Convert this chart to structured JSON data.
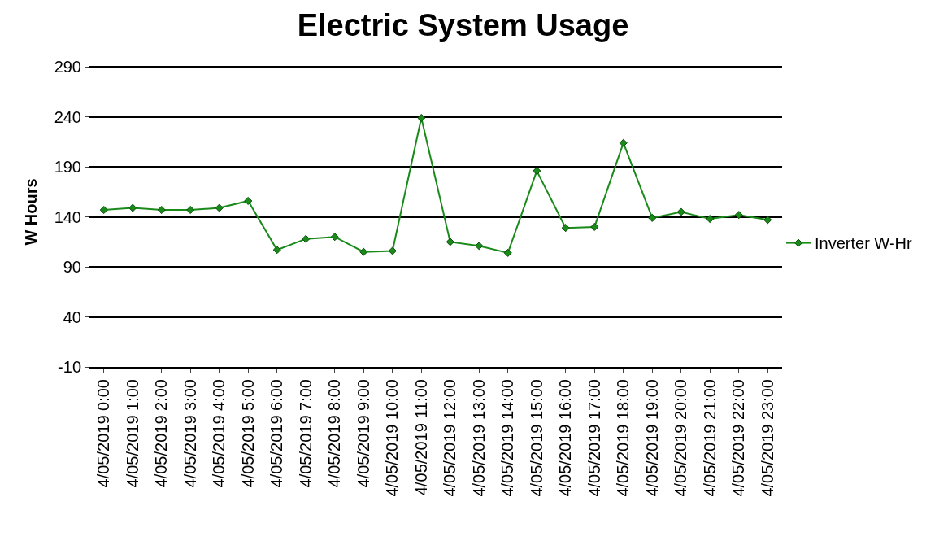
{
  "chart_data": {
    "type": "line",
    "title": "Electric System Usage",
    "ylabel": "W Hours",
    "categories": [
      "4/05/2019 0:00",
      "4/05/2019 1:00",
      "4/05/2019 2:00",
      "4/05/2019 3:00",
      "4/05/2019 4:00",
      "4/05/2019 5:00",
      "4/05/2019 6:00",
      "4/05/2019 7:00",
      "4/05/2019 8:00",
      "4/05/2019 9:00",
      "4/05/2019 10:00",
      "4/05/2019 11:00",
      "4/05/2019 12:00",
      "4/05/2019 13:00",
      "4/05/2019 14:00",
      "4/05/2019 15:00",
      "4/05/2019 16:00",
      "4/05/2019 17:00",
      "4/05/2019 18:00",
      "4/05/2019 19:00",
      "4/05/2019 20:00",
      "4/05/2019 21:00",
      "4/05/2019 22:00",
      "4/05/2019 23:00"
    ],
    "series": [
      {
        "name": "Inverter W-Hr",
        "color": "#1a8a1a",
        "values": [
          147,
          149,
          147,
          147,
          149,
          156,
          107,
          118,
          120,
          105,
          106,
          239,
          115,
          111,
          104,
          186,
          129,
          130,
          214,
          139,
          145,
          138,
          142,
          137
        ]
      }
    ],
    "ylim": [
      -10,
      300
    ],
    "yticks": [
      -10,
      40,
      90,
      140,
      190,
      240,
      290
    ],
    "grid": "y",
    "legend": "right",
    "marker": "diamond",
    "line_style": "solid"
  }
}
